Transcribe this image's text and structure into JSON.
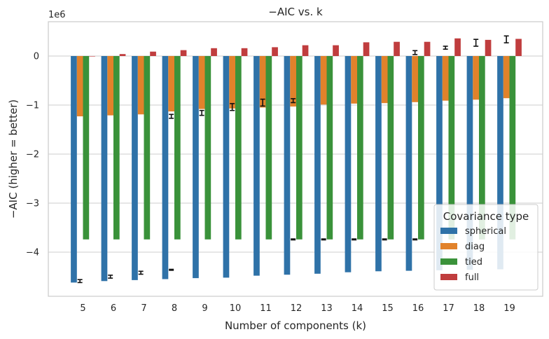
{
  "chart_data": {
    "type": "bar",
    "title": "−AIC vs. k",
    "xlabel": "Number of components (k)",
    "ylabel": "−AIC (higher = better)",
    "y_scale_label": "1e6",
    "ylim": [
      -4.9,
      0.7
    ],
    "yticks": [
      0,
      -1,
      -2,
      -3,
      -4
    ],
    "grid": "horizontal",
    "categories": [
      "5",
      "6",
      "7",
      "8",
      "9",
      "10",
      "11",
      "12",
      "13",
      "14",
      "15",
      "16",
      "17",
      "18",
      "19"
    ],
    "legend": {
      "title": "Covariance type",
      "position": "lower-right"
    },
    "series": [
      {
        "name": "spherical",
        "color": "#2f72a8",
        "values": [
          -4.62,
          -4.59,
          -4.57,
          -4.55,
          -4.53,
          -4.52,
          -4.48,
          -4.46,
          -4.44,
          -4.41,
          -4.39,
          -4.38,
          -4.37,
          -4.36,
          -4.35
        ],
        "err": [
          0.04,
          0.04,
          0.04,
          0.02,
          0.01,
          0.01,
          0.01,
          0.01,
          0.01,
          0.01,
          0.01,
          0.01,
          0.02,
          0.02,
          0.02
        ]
      },
      {
        "name": "diag",
        "color": "#e1822b",
        "values": [
          -1.23,
          -1.21,
          -1.19,
          -1.13,
          -1.08,
          -1.07,
          -1.05,
          -1.03,
          -0.99,
          -0.97,
          -0.96,
          -0.94,
          -0.91,
          -0.89,
          -0.86
        ],
        "err": [
          0.01,
          0.01,
          0.01,
          0.05,
          0.05,
          0.08,
          0.08,
          0.04,
          0.01,
          0.01,
          0.01,
          0.01,
          0.01,
          0.01,
          0.01
        ]
      },
      {
        "name": "tied",
        "color": "#3a923a",
        "values": [
          -3.74,
          -3.74,
          -3.74,
          -3.74,
          -3.74,
          -3.74,
          -3.74,
          -3.74,
          -3.74,
          -3.74,
          -3.74,
          -3.74,
          -3.74,
          -3.74,
          -3.74
        ],
        "err": [
          0.01,
          0.01,
          0.01,
          0.01,
          0.01,
          0.01,
          0.01,
          0.01,
          0.01,
          0.01,
          0.01,
          0.01,
          0.01,
          0.01,
          0.01
        ]
      },
      {
        "name": "full",
        "color": "#c03d3e",
        "values": [
          0.0,
          0.04,
          0.09,
          0.12,
          0.16,
          0.16,
          0.18,
          0.22,
          0.22,
          0.28,
          0.29,
          0.29,
          0.36,
          0.33,
          0.35
        ],
        "err": [
          0.01,
          0.01,
          0.01,
          0.01,
          0.01,
          0.01,
          0.01,
          0.01,
          0.01,
          0.01,
          0.01,
          0.04,
          0.03,
          0.07,
          0.07
        ]
      }
    ],
    "error_markers": [
      {
        "x": "5",
        "y": -4.59,
        "err": 0.03
      },
      {
        "x": "6",
        "y": -4.5,
        "err": 0.03
      },
      {
        "x": "7",
        "y": -4.42,
        "err": 0.03
      },
      {
        "x": "8",
        "y": -4.36,
        "err": 0.01
      },
      {
        "x": "8",
        "y": -1.23,
        "err": 0.04
      },
      {
        "x": "9",
        "y": -1.16,
        "err": 0.05
      },
      {
        "x": "10",
        "y": -1.04,
        "err": 0.07
      },
      {
        "x": "11",
        "y": -0.95,
        "err": 0.07
      },
      {
        "x": "12",
        "y": -0.91,
        "err": 0.04
      },
      {
        "x": "12",
        "y": -3.74,
        "err": 0.01
      },
      {
        "x": "13",
        "y": -3.74,
        "err": 0.01
      },
      {
        "x": "14",
        "y": -3.74,
        "err": 0.01
      },
      {
        "x": "15",
        "y": -3.74,
        "err": 0.01
      },
      {
        "x": "16",
        "y": -3.74,
        "err": 0.01
      },
      {
        "x": "16",
        "y": 0.07,
        "err": 0.04
      },
      {
        "x": "17",
        "y": 0.17,
        "err": 0.03
      },
      {
        "x": "18",
        "y": 0.27,
        "err": 0.07
      },
      {
        "x": "19",
        "y": 0.34,
        "err": 0.07
      }
    ]
  }
}
